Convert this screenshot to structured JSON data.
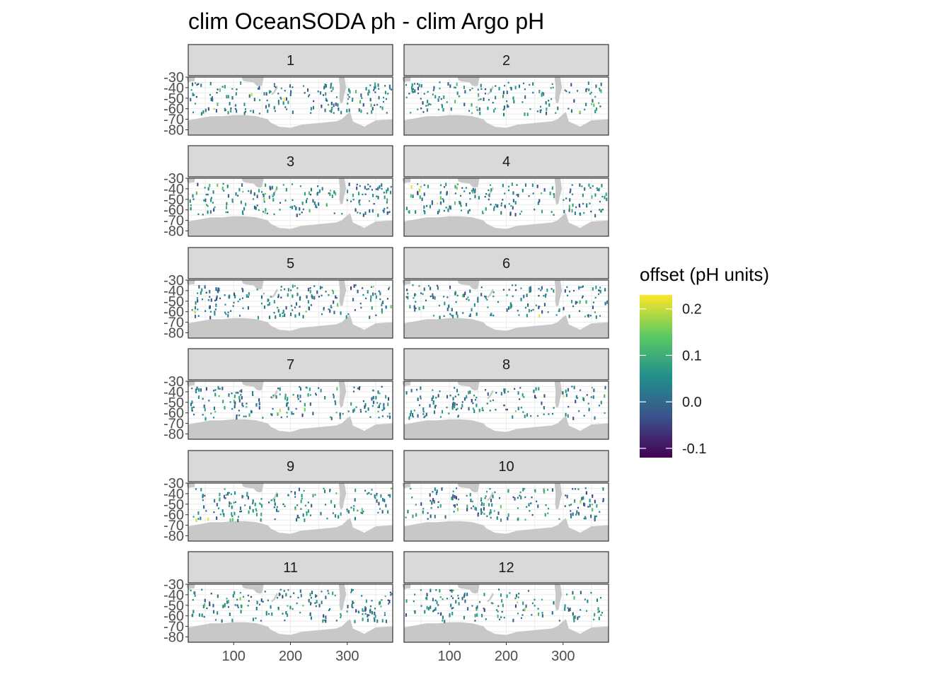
{
  "chart_data": {
    "type": "heatmap",
    "title": "clim OceanSODA ph - clim Argo pH",
    "xlabel": "",
    "ylabel": "",
    "facets": [
      "1",
      "2",
      "3",
      "4",
      "5",
      "6",
      "7",
      "8",
      "9",
      "10",
      "11",
      "12"
    ],
    "x_ticks": [
      100,
      200,
      300
    ],
    "y_ticks": [
      -30,
      -40,
      -50,
      -60,
      -70,
      -80
    ],
    "xlim": [
      20,
      380
    ],
    "ylim": [
      -85,
      -30
    ],
    "grid": true,
    "land_color": "#c8c8c8",
    "legend": {
      "title": "offset (pH units)",
      "position": "right",
      "colormap": "viridis",
      "range": [
        -0.12,
        0.23
      ],
      "ticks": [
        0.2,
        0.1,
        0.0,
        -0.1
      ],
      "tick_labels": [
        "0.2",
        "0.1",
        "0.0",
        "-0.1"
      ],
      "colors": [
        "#440154",
        "#3b528b",
        "#21908c",
        "#5dc963",
        "#fde725"
      ]
    },
    "note": "Each facet shows a sparse scatter of 1x1 degree grid cells across the Southern Ocean (approx. 30S-75S). Most offsets lie between -0.05 and 0.1 pH units, with scattered cells elsewhere."
  }
}
